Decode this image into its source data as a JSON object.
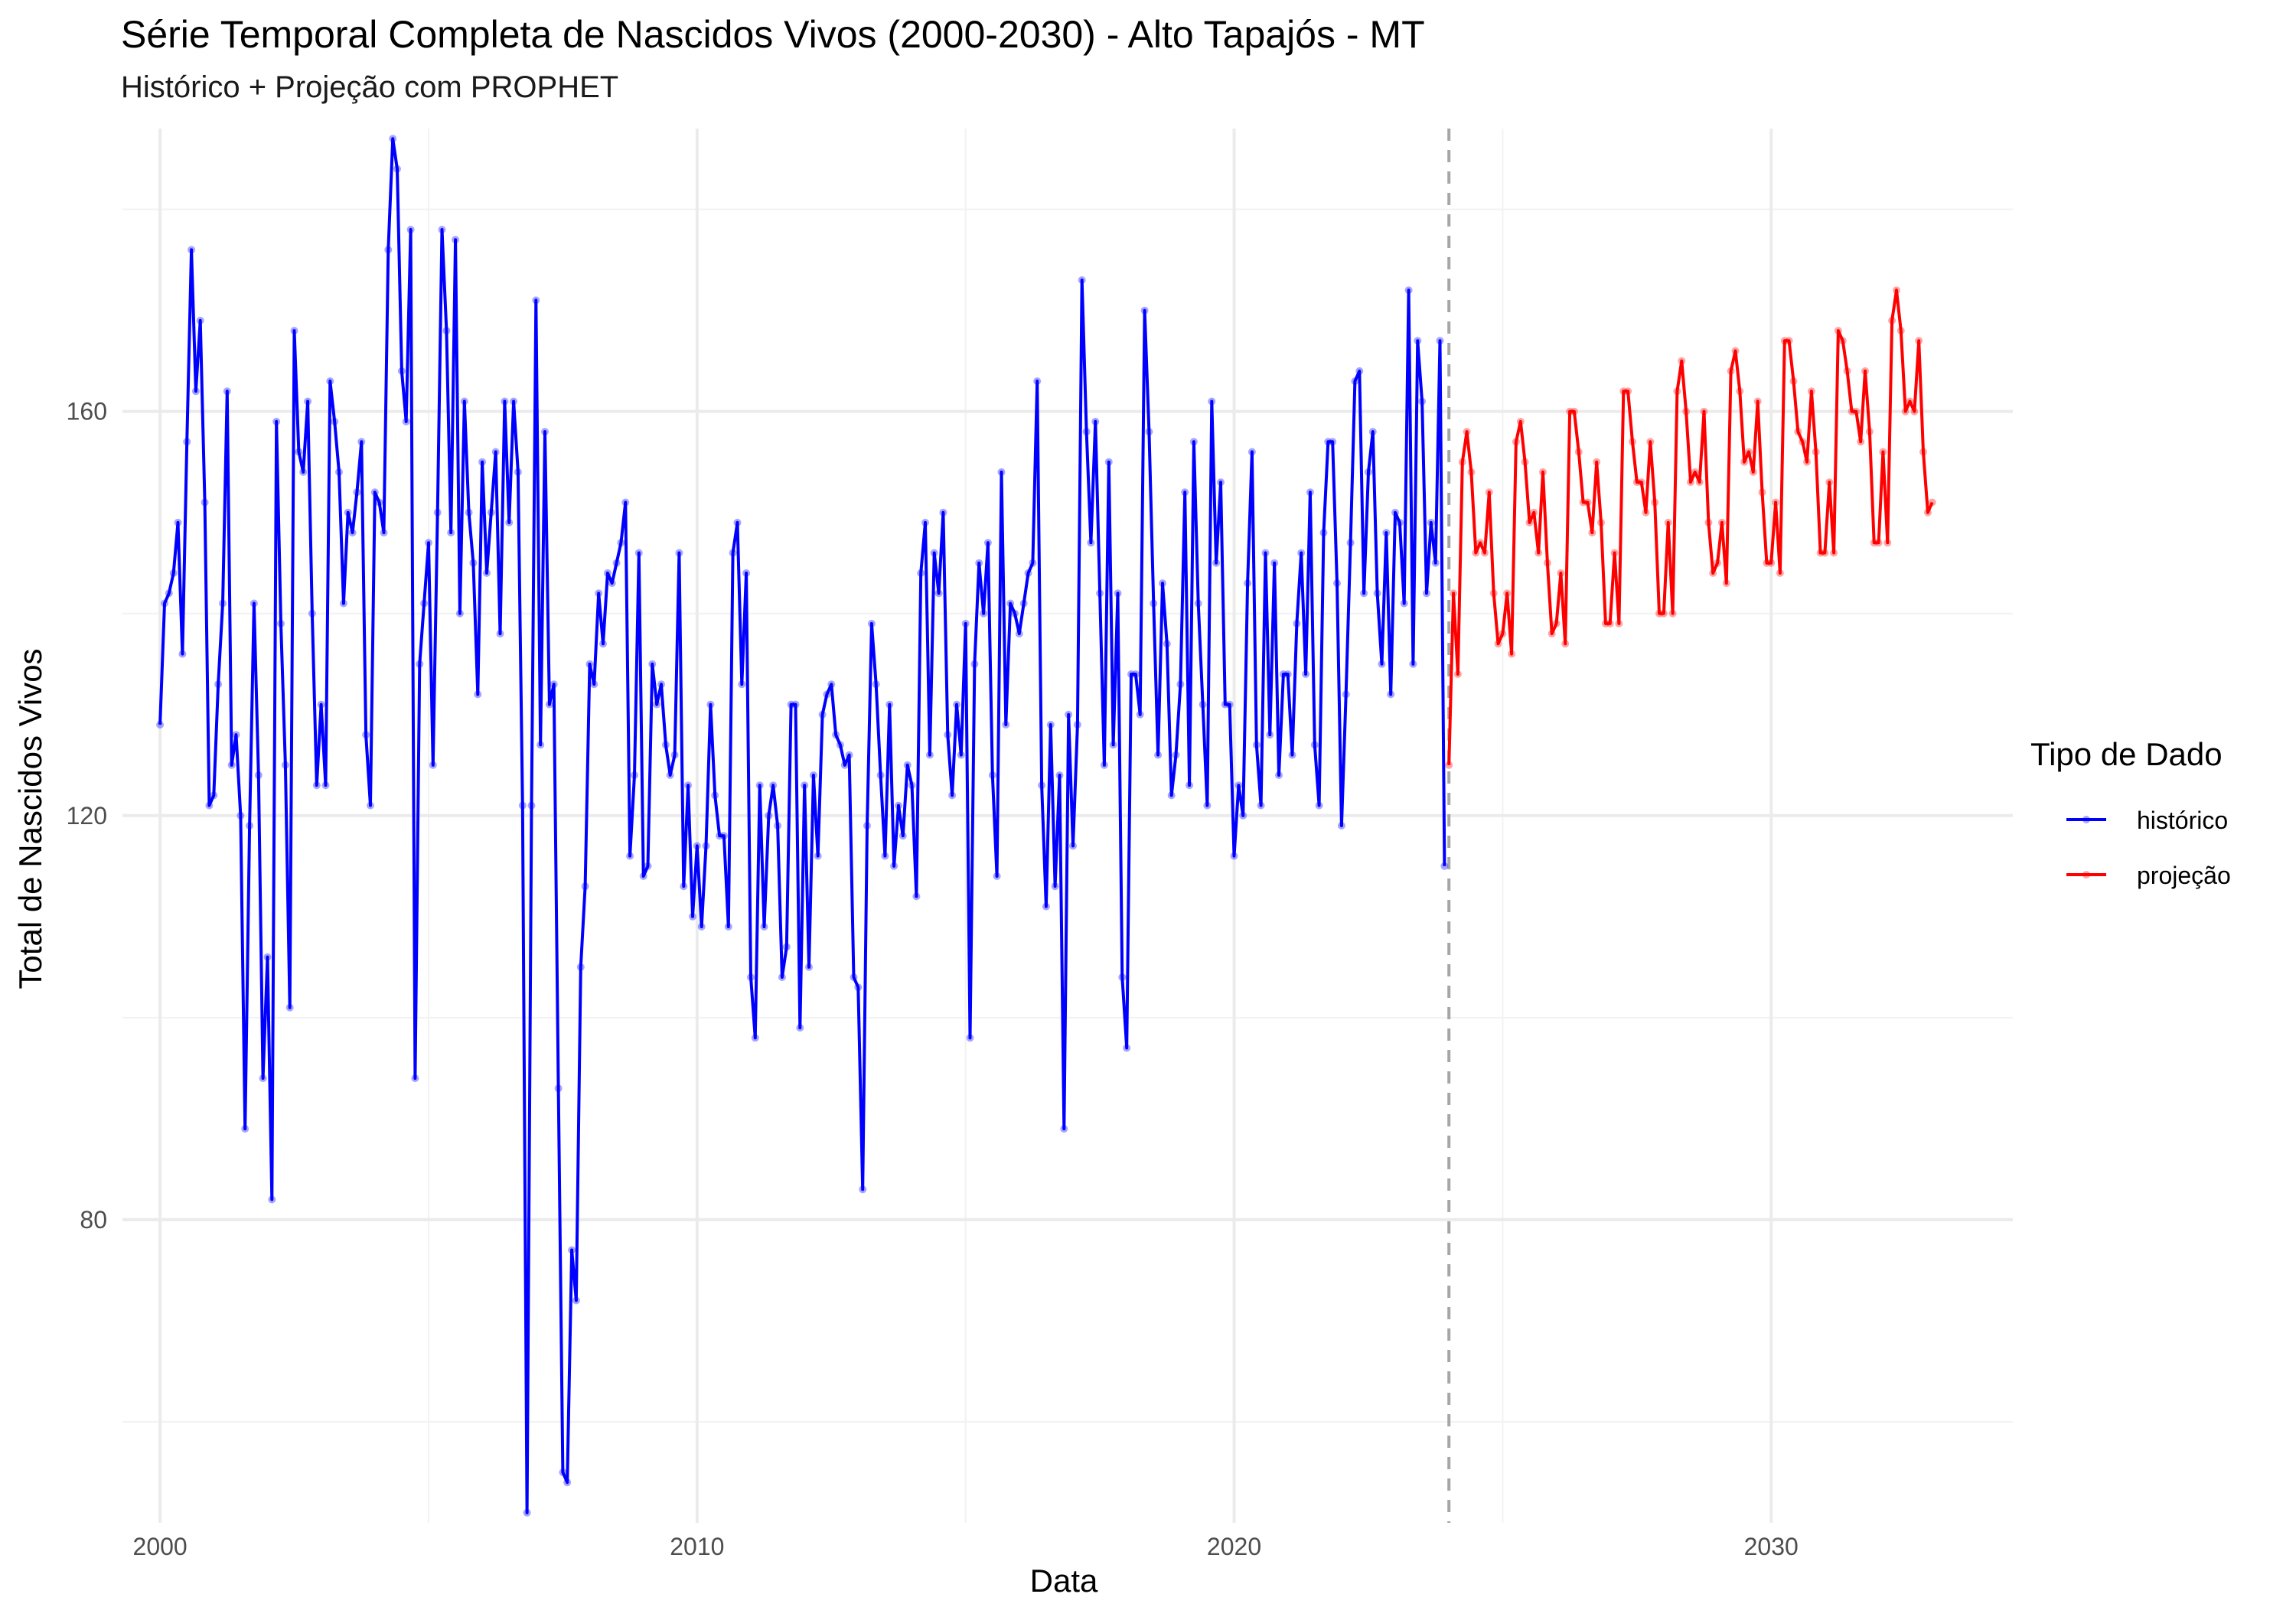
{
  "chart_data": {
    "type": "line",
    "title": "Série Temporal Completa de Nascidos Vivos (2000-2030) -  Alto Tapajós - MT",
    "subtitle": "Histórico + Projeção com PROPHET",
    "xlabel": "Data",
    "ylabel": "Total de Nascidos Vivos",
    "x_ticks": [
      "2000",
      "2010",
      "2020",
      "2030"
    ],
    "y_ticks": [
      "80",
      "120",
      "160"
    ],
    "xlim": [
      1999.3,
      2034.5
    ],
    "ylim": [
      50,
      188
    ],
    "grid": true,
    "vline_x": 2024.0,
    "legend": {
      "title": "Tipo de Dado",
      "placement": "right",
      "entries": [
        {
          "label": "histórico",
          "color": "#0000ff"
        },
        {
          "label": "projeção",
          "color": "#ff0000"
        }
      ]
    },
    "series": [
      {
        "name": "histórico",
        "color": "#0000ff",
        "x_start": 2000.0,
        "x_step_months": 1,
        "values": [
          129,
          141,
          142,
          144,
          149,
          136,
          157,
          176,
          162,
          169,
          151,
          121,
          122,
          133,
          141,
          162,
          125,
          128,
          120,
          89,
          119,
          141,
          124,
          94,
          106,
          82,
          159,
          139,
          125,
          101,
          168,
          156,
          154,
          161,
          140,
          123,
          131,
          123,
          163,
          159,
          154,
          141,
          150,
          148,
          152,
          157,
          128,
          121,
          152,
          151,
          148,
          176,
          187,
          184,
          164,
          159,
          178,
          94,
          135,
          141,
          147,
          125,
          150,
          178,
          168,
          148,
          177,
          140,
          161,
          150,
          145,
          132,
          155,
          144,
          150,
          156,
          138,
          161,
          149,
          161,
          154,
          121,
          51,
          121,
          171,
          127,
          158,
          131,
          133,
          93,
          55,
          54,
          77,
          72,
          105,
          113,
          135,
          133,
          142,
          137,
          144,
          143,
          145,
          147,
          151,
          116,
          124,
          146,
          114,
          115,
          135,
          131,
          133,
          127,
          124,
          126,
          146,
          113,
          123,
          110,
          117,
          109,
          117,
          131,
          122,
          118,
          118,
          109,
          146,
          149,
          133,
          144,
          104,
          98,
          123,
          109,
          120,
          123,
          119,
          104,
          107,
          131,
          131,
          99,
          123,
          105,
          124,
          116,
          130,
          132,
          133,
          128,
          127,
          125,
          126,
          104,
          103,
          83,
          119,
          139,
          133,
          124,
          116,
          131,
          115,
          121,
          118,
          125,
          123,
          112,
          144,
          149,
          126,
          146,
          142,
          150,
          128,
          122,
          131,
          126,
          139,
          98,
          135,
          145,
          140,
          147,
          124,
          114,
          154,
          129,
          141,
          140,
          138,
          141,
          144,
          145,
          163,
          123,
          111,
          129,
          113,
          124,
          89,
          130,
          117,
          129,
          173,
          158,
          147,
          159,
          142,
          125,
          155,
          127,
          142,
          104,
          97,
          134,
          134,
          130,
          170,
          158,
          141,
          126,
          143,
          137,
          122,
          126,
          133,
          152,
          123,
          157,
          141,
          131,
          121,
          161,
          145,
          153,
          131,
          131,
          116,
          123,
          120,
          143,
          156,
          127,
          121,
          146,
          128,
          145,
          124,
          134,
          134,
          126,
          139,
          146,
          134,
          152,
          127,
          121,
          148,
          157,
          157,
          143,
          119,
          132,
          147,
          163,
          164,
          142,
          154,
          158,
          142,
          135,
          148,
          132,
          150,
          149,
          141,
          172,
          135,
          167,
          161,
          142,
          149,
          145,
          167,
          115
        ]
      },
      {
        "name": "projeção",
        "color": "#ff0000",
        "x_start": 2024.0,
        "x_step_months": 1,
        "values": [
          125,
          142,
          134,
          155,
          158,
          154,
          146,
          147,
          146,
          152,
          142,
          137,
          138,
          142,
          136,
          157,
          159,
          155,
          149,
          150,
          146,
          154,
          145,
          138,
          139,
          144,
          137,
          160,
          160,
          156,
          151,
          151,
          148,
          155,
          149,
          139,
          139,
          146,
          139,
          162,
          162,
          157,
          153,
          153,
          150,
          157,
          151,
          140,
          140,
          149,
          140,
          162,
          165,
          160,
          153,
          154,
          153,
          160,
          149,
          144,
          145,
          149,
          143,
          164,
          166,
          162,
          155,
          156,
          154,
          161,
          152,
          145,
          145,
          151,
          144,
          167,
          167,
          163,
          158,
          157,
          155,
          162,
          156,
          146,
          146,
          153,
          146,
          168,
          167,
          164,
          160,
          160,
          157,
          164,
          158,
          147,
          147,
          156,
          147,
          169,
          172,
          168,
          160,
          161,
          160,
          167,
          156,
          150,
          151
        ]
      }
    ]
  }
}
